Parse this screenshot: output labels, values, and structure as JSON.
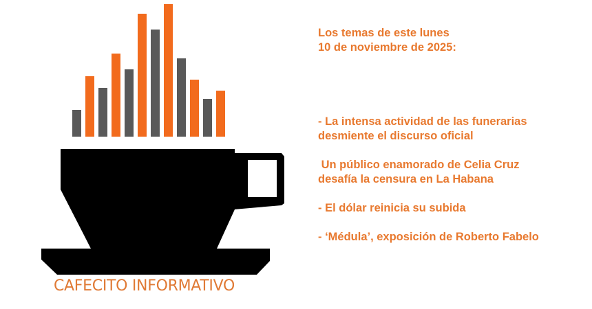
{
  "logo": {
    "brand_name": "CAFECITO INFORMATIVO",
    "colors": {
      "orange": "#f26b1d",
      "gray": "#595959",
      "cup": "#000000"
    }
  },
  "header": {
    "line1": "Los temas de este lunes",
    "line2": "10 de noviembre de 2025:"
  },
  "topics": [
    {
      "line1": "- La intensa actividad de las funerarias",
      "line2": "desmiente el discurso oficial"
    },
    {
      "line1": " Un público enamorado de Celia Cruz",
      "line2": "desafía la censura en La Habana"
    },
    {
      "line1": "- El dólar reinicia su subida"
    },
    {
      "line1": "- ‘Médula’, exposición de Roberto Fabelo"
    }
  ],
  "text_color": "#e8792f"
}
